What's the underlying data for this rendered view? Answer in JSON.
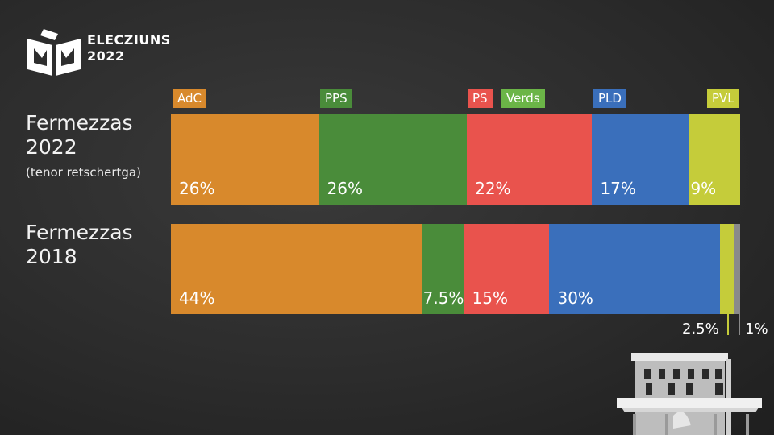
{
  "logo": {
    "line1": "ELECZIUNS",
    "line2": "2022"
  },
  "rows": [
    {
      "title_line1": "Fermezzas",
      "title_line2": "2022",
      "subtitle": "(tenor retschertga)"
    },
    {
      "title_line1": "Fermezzas",
      "title_line2": "2018"
    }
  ],
  "parties": [
    {
      "name": "AdC",
      "color": "#d8892c"
    },
    {
      "name": "PPS",
      "color": "#4a8c3a"
    },
    {
      "name": "PS",
      "color": "#e9534d"
    },
    {
      "name": "Verds",
      "color": "#6bb547"
    },
    {
      "name": "PLD",
      "color": "#3a6fbb"
    },
    {
      "name": "PVL",
      "color": "#c5cc3a"
    }
  ],
  "chart_data": {
    "type": "bar",
    "stacked": true,
    "orientation": "horizontal",
    "categories": [
      "Fermezzas 2022 (tenor retschertga)",
      "Fermezzas 2018"
    ],
    "series": [
      {
        "row": "Fermezzas 2022",
        "segments": [
          {
            "party": "AdC",
            "value": 26,
            "label": "26%",
            "color": "#d8892c"
          },
          {
            "party": "PPS",
            "value": 26,
            "label": "26%",
            "color": "#4a8c3a"
          },
          {
            "party": "PS",
            "value": 22,
            "label": "22%",
            "color": "#e9534d"
          },
          {
            "party": "PLD",
            "value": 17,
            "label": "17%",
            "color": "#3a6fbb"
          },
          {
            "party": "PVL",
            "value": 9,
            "label": "9%",
            "color": "#c5cc3a"
          }
        ]
      },
      {
        "row": "Fermezzas 2018",
        "segments": [
          {
            "party": "AdC",
            "value": 44,
            "label": "44%",
            "color": "#d8892c"
          },
          {
            "party": "PPS",
            "value": 7.5,
            "label": "7.5%",
            "color": "#4a8c3a"
          },
          {
            "party": "PS",
            "value": 15,
            "label": "15%",
            "color": "#e9534d"
          },
          {
            "party": "PLD",
            "value": 30,
            "label": "30%",
            "color": "#3a6fbb"
          },
          {
            "party": "PVL",
            "value": 2.5,
            "label": "2.5%",
            "color": "#c5cc3a"
          },
          {
            "party": "other",
            "value": 1,
            "label": "1%",
            "color": "#8a8a8a"
          }
        ]
      }
    ]
  }
}
